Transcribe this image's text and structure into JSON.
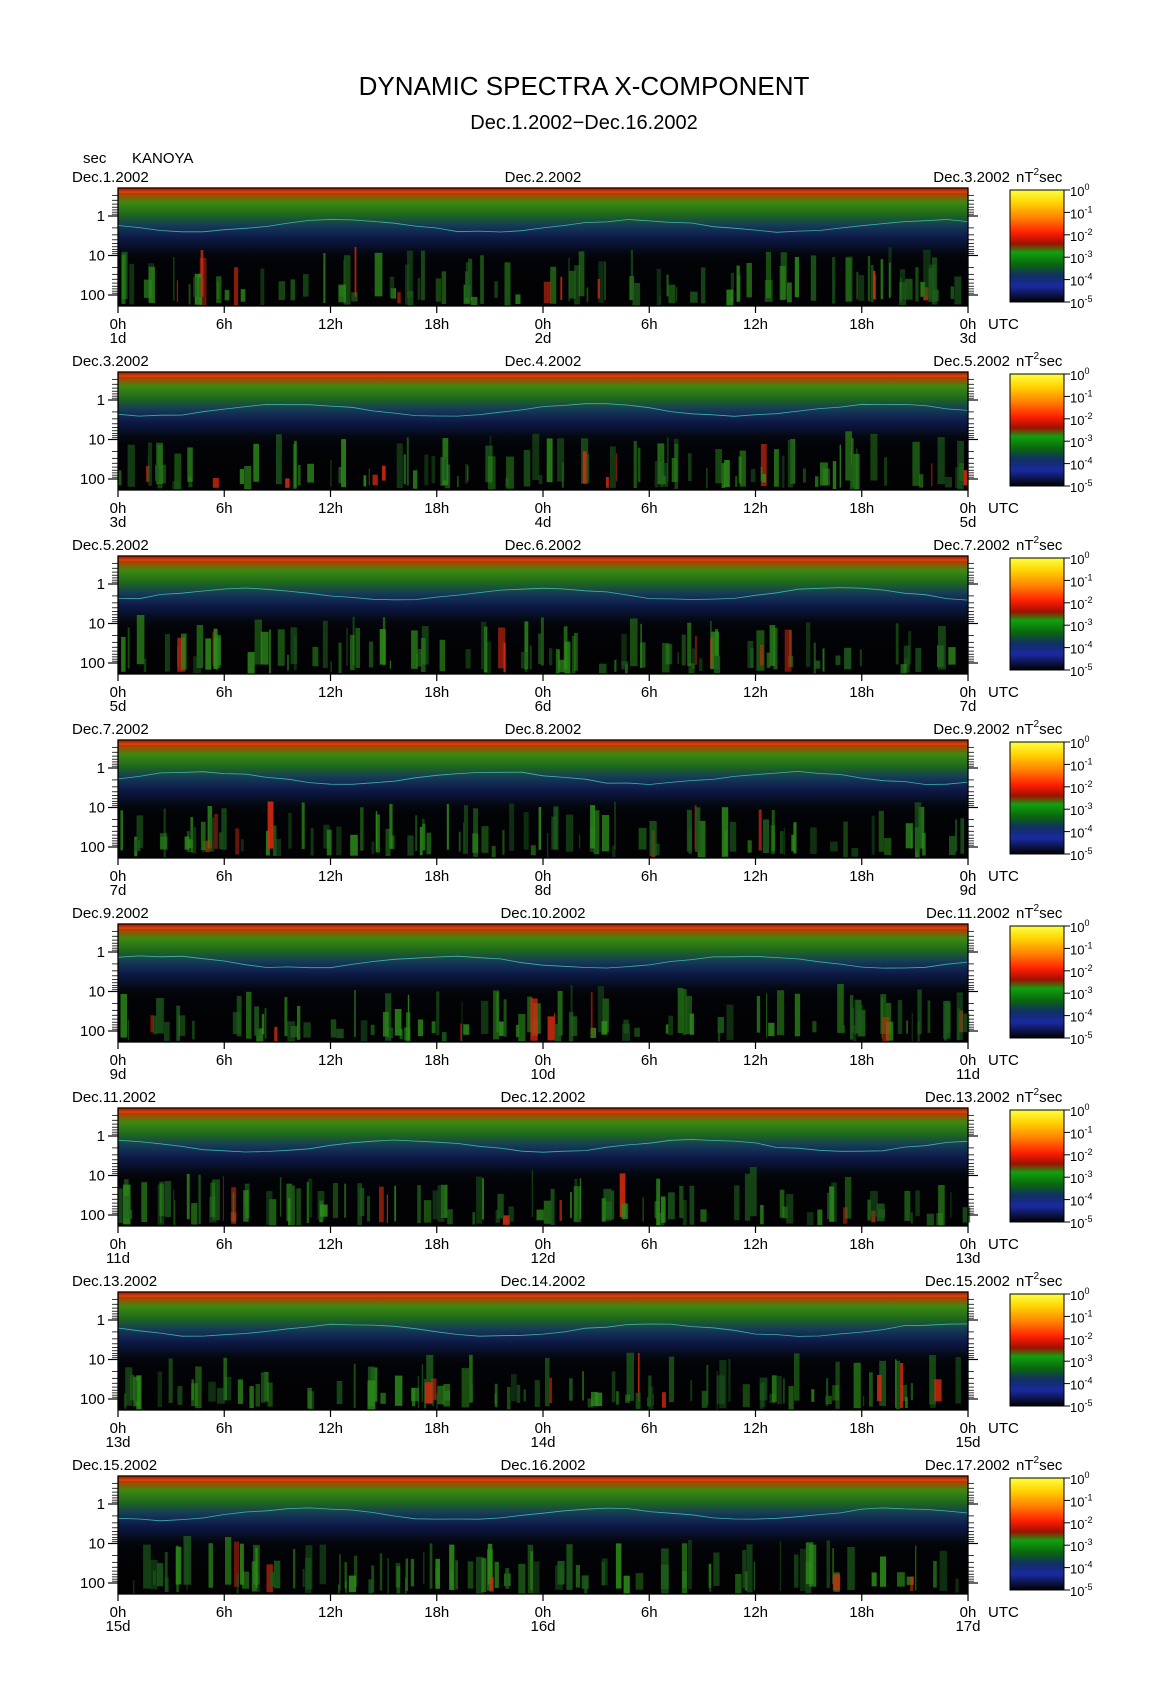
{
  "header": {
    "title": "DYNAMIC SPECTRA X-COMPONENT",
    "subtitle": "Dec.1.2002−Dec.16.2002"
  },
  "chart_data": {
    "type": "heatmap",
    "station": "KANOYA",
    "y_unit": "sec",
    "y_scale": "log",
    "y_tick_labels": [
      "1",
      "10",
      "100"
    ],
    "x_tick_labels": [
      "0h",
      "6h",
      "12h",
      "18h",
      "0h",
      "6h",
      "12h",
      "18h",
      "0h"
    ],
    "x_unit": "UTC",
    "colorbar": {
      "unit_label": "nT",
      "unit_exponent": "2",
      "unit_suffix": "sec",
      "tick_base": "10",
      "tick_exponents": [
        "0",
        "-1",
        "-2",
        "-3",
        "-4",
        "-5"
      ],
      "colors": [
        "#ffff30",
        "#ffb000",
        "#ff2a00",
        "#c00000",
        "#00b000",
        "#006000",
        "#1a2aa0",
        "#000000"
      ]
    },
    "panels": [
      {
        "date_left": "Dec.1.2002",
        "date_mid": "Dec.2.2002",
        "date_right": "Dec.3.2002",
        "day_left": "1d",
        "day_mid": "2d",
        "day_right": "3d"
      },
      {
        "date_left": "Dec.3.2002",
        "date_mid": "Dec.4.2002",
        "date_right": "Dec.5.2002",
        "day_left": "3d",
        "day_mid": "4d",
        "day_right": "5d"
      },
      {
        "date_left": "Dec.5.2002",
        "date_mid": "Dec.6.2002",
        "date_right": "Dec.7.2002",
        "day_left": "5d",
        "day_mid": "6d",
        "day_right": "7d"
      },
      {
        "date_left": "Dec.7.2002",
        "date_mid": "Dec.8.2002",
        "date_right": "Dec.9.2002",
        "day_left": "7d",
        "day_mid": "8d",
        "day_right": "9d"
      },
      {
        "date_left": "Dec.9.2002",
        "date_mid": "Dec.10.2002",
        "date_right": "Dec.11.2002",
        "day_left": "9d",
        "day_mid": "10d",
        "day_right": "11d"
      },
      {
        "date_left": "Dec.11.2002",
        "date_mid": "Dec.12.2002",
        "date_right": "Dec.13.2002",
        "day_left": "11d",
        "day_mid": "12d",
        "day_right": "13d"
      },
      {
        "date_left": "Dec.13.2002",
        "date_mid": "Dec.14.2002",
        "date_right": "Dec.15.2002",
        "day_left": "13d",
        "day_mid": "14d",
        "day_right": "15d"
      },
      {
        "date_left": "Dec.15.2002",
        "date_mid": "Dec.16.2002",
        "date_right": "Dec.17.2002",
        "day_left": "15d",
        "day_mid": "16d",
        "day_right": "17d"
      }
    ]
  }
}
